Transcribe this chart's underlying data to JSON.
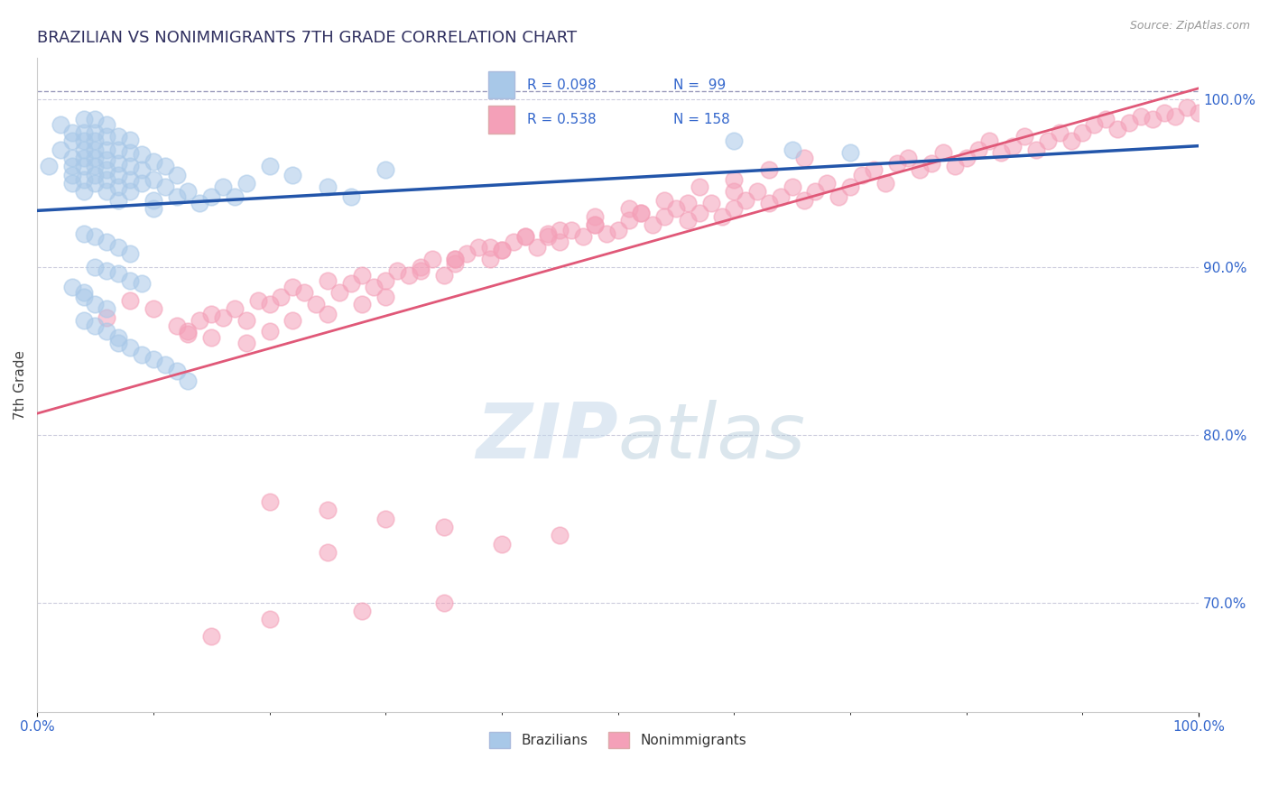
{
  "title": "BRAZILIAN VS NONIMMIGRANTS 7TH GRADE CORRELATION CHART",
  "source": "Source: ZipAtlas.com",
  "ylabel": "7th Grade",
  "right_ytick_labels": [
    "70.0%",
    "80.0%",
    "90.0%",
    "100.0%"
  ],
  "right_ytick_values": [
    0.7,
    0.8,
    0.9,
    1.0
  ],
  "xlim": [
    0.0,
    1.0
  ],
  "ylim": [
    0.635,
    1.025
  ],
  "dashed_line_y": 1.005,
  "blue_R": 0.098,
  "blue_N": 99,
  "pink_R": 0.538,
  "pink_N": 158,
  "blue_color": "#a8c8e8",
  "pink_color": "#f4a0b8",
  "blue_line_color": "#2255aa",
  "pink_line_color": "#e05878",
  "title_color": "#303060",
  "source_color": "#999999",
  "legend_text_color": "#3366cc",
  "background_color": "#ffffff",
  "blue_scatter_x": [
    0.01,
    0.02,
    0.02,
    0.03,
    0.03,
    0.03,
    0.03,
    0.03,
    0.03,
    0.04,
    0.04,
    0.04,
    0.04,
    0.04,
    0.04,
    0.04,
    0.04,
    0.05,
    0.05,
    0.05,
    0.05,
    0.05,
    0.05,
    0.05,
    0.05,
    0.06,
    0.06,
    0.06,
    0.06,
    0.06,
    0.06,
    0.06,
    0.07,
    0.07,
    0.07,
    0.07,
    0.07,
    0.07,
    0.08,
    0.08,
    0.08,
    0.08,
    0.08,
    0.09,
    0.09,
    0.09,
    0.1,
    0.1,
    0.1,
    0.11,
    0.11,
    0.12,
    0.12,
    0.13,
    0.14,
    0.15,
    0.16,
    0.17,
    0.18,
    0.2,
    0.22,
    0.25,
    0.27,
    0.3,
    0.1,
    0.6,
    0.65,
    0.7,
    0.04,
    0.05,
    0.06,
    0.07,
    0.08,
    0.05,
    0.06,
    0.07,
    0.08,
    0.09,
    0.03,
    0.04,
    0.04,
    0.05,
    0.06,
    0.04,
    0.05,
    0.06,
    0.07,
    0.07,
    0.08,
    0.09,
    0.1,
    0.11,
    0.12,
    0.13
  ],
  "blue_scatter_y": [
    0.96,
    0.97,
    0.985,
    0.95,
    0.955,
    0.96,
    0.965,
    0.975,
    0.98,
    0.945,
    0.952,
    0.96,
    0.965,
    0.97,
    0.975,
    0.98,
    0.988,
    0.95,
    0.955,
    0.96,
    0.965,
    0.97,
    0.975,
    0.98,
    0.988,
    0.945,
    0.952,
    0.958,
    0.964,
    0.97,
    0.978,
    0.985,
    0.94,
    0.948,
    0.955,
    0.962,
    0.97,
    0.978,
    0.945,
    0.952,
    0.96,
    0.968,
    0.976,
    0.95,
    0.958,
    0.967,
    0.94,
    0.952,
    0.963,
    0.948,
    0.96,
    0.942,
    0.955,
    0.945,
    0.938,
    0.942,
    0.948,
    0.942,
    0.95,
    0.96,
    0.955,
    0.948,
    0.942,
    0.958,
    0.935,
    0.975,
    0.97,
    0.968,
    0.92,
    0.918,
    0.915,
    0.912,
    0.908,
    0.9,
    0.898,
    0.896,
    0.892,
    0.89,
    0.888,
    0.885,
    0.882,
    0.878,
    0.875,
    0.868,
    0.865,
    0.862,
    0.858,
    0.855,
    0.852,
    0.848,
    0.845,
    0.842,
    0.838,
    0.832
  ],
  "pink_scatter_x": [
    0.06,
    0.08,
    0.1,
    0.12,
    0.13,
    0.14,
    0.15,
    0.16,
    0.17,
    0.18,
    0.19,
    0.2,
    0.21,
    0.22,
    0.23,
    0.24,
    0.25,
    0.26,
    0.27,
    0.28,
    0.29,
    0.3,
    0.31,
    0.32,
    0.33,
    0.34,
    0.35,
    0.36,
    0.37,
    0.38,
    0.39,
    0.4,
    0.41,
    0.42,
    0.43,
    0.44,
    0.45,
    0.46,
    0.47,
    0.48,
    0.49,
    0.5,
    0.51,
    0.52,
    0.53,
    0.54,
    0.55,
    0.56,
    0.57,
    0.58,
    0.59,
    0.6,
    0.61,
    0.62,
    0.63,
    0.64,
    0.65,
    0.66,
    0.67,
    0.68,
    0.69,
    0.7,
    0.71,
    0.72,
    0.73,
    0.74,
    0.75,
    0.76,
    0.77,
    0.78,
    0.79,
    0.8,
    0.81,
    0.82,
    0.83,
    0.84,
    0.85,
    0.86,
    0.87,
    0.88,
    0.89,
    0.9,
    0.91,
    0.92,
    0.93,
    0.94,
    0.95,
    0.96,
    0.97,
    0.98,
    0.99,
    1.0,
    0.13,
    0.15,
    0.18,
    0.2,
    0.22,
    0.25,
    0.28,
    0.3,
    0.33,
    0.36,
    0.39,
    0.42,
    0.45,
    0.48,
    0.51,
    0.54,
    0.57,
    0.6,
    0.63,
    0.66,
    0.36,
    0.4,
    0.44,
    0.48,
    0.52,
    0.56,
    0.6,
    0.2,
    0.25,
    0.3,
    0.35,
    0.25,
    0.4,
    0.45,
    0.15,
    0.2,
    0.28,
    0.35
  ],
  "pink_scatter_y": [
    0.87,
    0.88,
    0.875,
    0.865,
    0.862,
    0.868,
    0.872,
    0.87,
    0.875,
    0.868,
    0.88,
    0.878,
    0.882,
    0.888,
    0.885,
    0.878,
    0.892,
    0.885,
    0.89,
    0.895,
    0.888,
    0.892,
    0.898,
    0.895,
    0.9,
    0.905,
    0.895,
    0.902,
    0.908,
    0.912,
    0.905,
    0.91,
    0.915,
    0.918,
    0.912,
    0.92,
    0.915,
    0.922,
    0.918,
    0.925,
    0.92,
    0.922,
    0.928,
    0.932,
    0.925,
    0.93,
    0.935,
    0.928,
    0.932,
    0.938,
    0.93,
    0.935,
    0.94,
    0.945,
    0.938,
    0.942,
    0.948,
    0.94,
    0.945,
    0.95,
    0.942,
    0.948,
    0.955,
    0.958,
    0.95,
    0.962,
    0.965,
    0.958,
    0.962,
    0.968,
    0.96,
    0.965,
    0.97,
    0.975,
    0.968,
    0.972,
    0.978,
    0.97,
    0.975,
    0.98,
    0.975,
    0.98,
    0.985,
    0.988,
    0.982,
    0.986,
    0.99,
    0.988,
    0.992,
    0.99,
    0.995,
    0.992,
    0.86,
    0.858,
    0.855,
    0.862,
    0.868,
    0.872,
    0.878,
    0.882,
    0.898,
    0.905,
    0.912,
    0.918,
    0.922,
    0.93,
    0.935,
    0.94,
    0.948,
    0.952,
    0.958,
    0.965,
    0.905,
    0.91,
    0.918,
    0.925,
    0.932,
    0.938,
    0.945,
    0.76,
    0.755,
    0.75,
    0.745,
    0.73,
    0.735,
    0.74,
    0.68,
    0.69,
    0.695,
    0.7
  ]
}
